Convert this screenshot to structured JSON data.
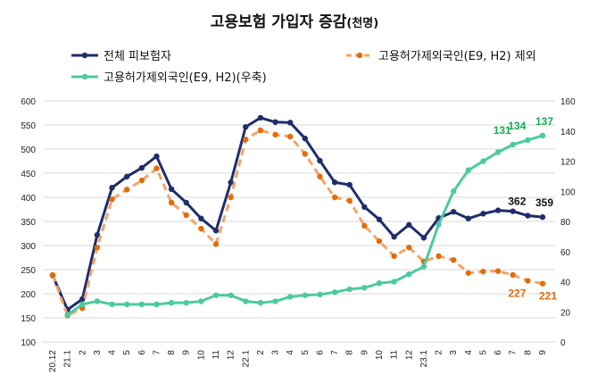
{
  "chart_data": {
    "type": "line",
    "title": "고용보험 가입자 증감",
    "title_unit": "(천명)",
    "categories": [
      "20.12",
      "21.1",
      "2",
      "3",
      "4",
      "5",
      "6",
      "7",
      "8",
      "9",
      "10",
      "11",
      "12",
      "22.1",
      "2",
      "3",
      "4",
      "5",
      "6",
      "7",
      "8",
      "9",
      "10",
      "11",
      "12",
      "23.1",
      "2",
      "3",
      "4",
      "5",
      "6",
      "7",
      "8",
      "9"
    ],
    "y_left": {
      "min": 100,
      "max": 600,
      "ticks": [
        100,
        150,
        200,
        250,
        300,
        350,
        400,
        450,
        500,
        550,
        600
      ]
    },
    "y_right": {
      "min": 0,
      "max": 160,
      "ticks": [
        0,
        20,
        40,
        60,
        80,
        100,
        120,
        140,
        160
      ]
    },
    "grid": true,
    "legend_placement": "top",
    "series": [
      {
        "name": "전체 피보험자",
        "axis": "left",
        "color": "#1f2d6b",
        "dash": false,
        "values": [
          238,
          167,
          189,
          322,
          420,
          443,
          461,
          485,
          417,
          389,
          356,
          331,
          431,
          546,
          565,
          556,
          555,
          522,
          476,
          431,
          426,
          380,
          354,
          318,
          343,
          316,
          357,
          370,
          356,
          366,
          373,
          371,
          362,
          359
        ],
        "labels": {
          "32": "362",
          "33": "359"
        },
        "label_color": "#111111"
      },
      {
        "name": "고용허가제외국인(E9, H2) 제외",
        "axis": "left",
        "color": "#f4a46a",
        "marker_color": "#e36c0a",
        "dash": true,
        "values": [
          239,
          155,
          170,
          296,
          396,
          416,
          435,
          460,
          389,
          363,
          335,
          303,
          400,
          520,
          539,
          530,
          526,
          490,
          443,
          400,
          393,
          341,
          309,
          278,
          296,
          267,
          278,
          270,
          243,
          246,
          247,
          239,
          227,
          221
        ],
        "labels": {
          "32": "227",
          "33": "221"
        },
        "label_color": "#e36c0a"
      },
      {
        "name": "고용허가제외국인(E9, H2)(우축)",
        "axis": "right",
        "color": "#4dc9a0",
        "dash": false,
        "values": [
          null,
          18,
          25,
          27,
          25,
          25,
          25,
          25,
          26,
          26,
          27,
          31,
          31,
          27,
          26,
          27,
          30,
          31,
          31.5,
          33,
          35,
          36,
          39,
          40,
          45,
          50,
          78,
          100,
          114,
          120,
          126,
          131,
          134,
          137
        ],
        "labels": {
          "31": "131",
          "32": "134",
          "33": "137"
        },
        "label_color": "#1aaa55"
      }
    ]
  }
}
